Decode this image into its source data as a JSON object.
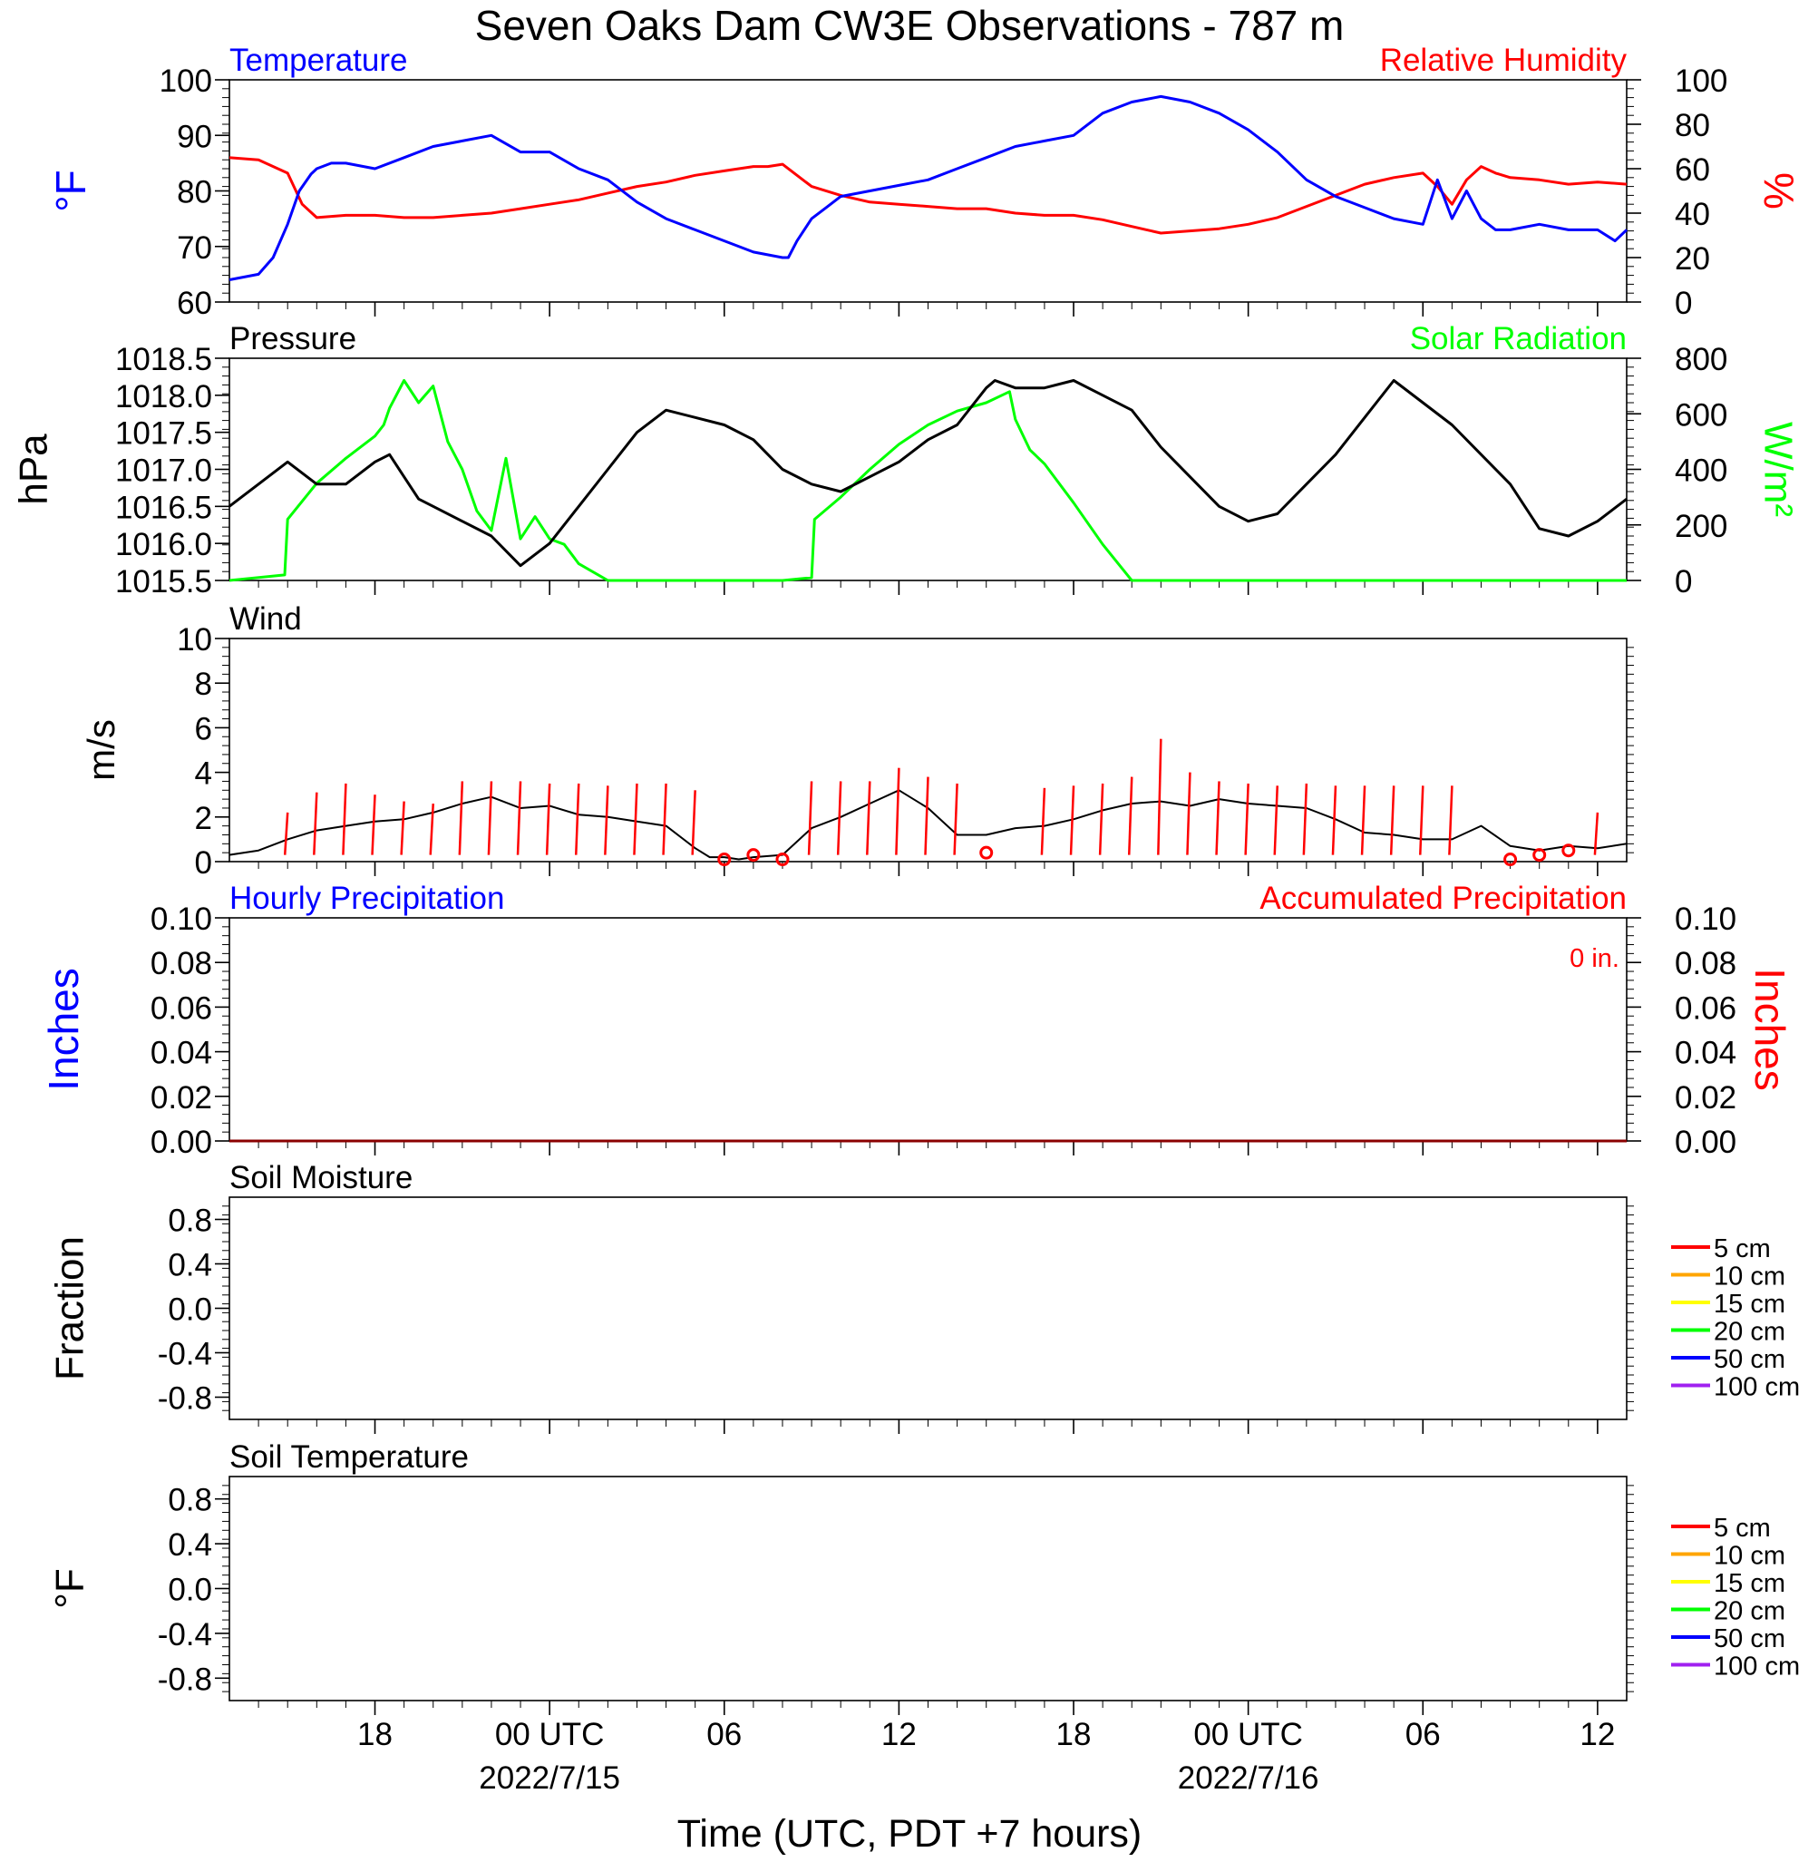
{
  "title": "Seven Oaks Dam CW3E Observations - 787 m",
  "x_axis": {
    "label": "Time (UTC, PDT +7 hours)",
    "range_hours": [
      -5,
      43
    ],
    "ticks": [
      {
        "h": 0,
        "label": "18",
        "date": ""
      },
      {
        "h": 6,
        "label": "00 UTC",
        "date": "2022/7/15"
      },
      {
        "h": 12,
        "label": "06",
        "date": ""
      },
      {
        "h": 18,
        "label": "12",
        "date": ""
      },
      {
        "h": 24,
        "label": "18",
        "date": ""
      },
      {
        "h": 30,
        "label": "00 UTC",
        "date": "2022/7/16"
      },
      {
        "h": 36,
        "label": "06",
        "date": ""
      },
      {
        "h": 42,
        "label": "12",
        "date": ""
      }
    ]
  },
  "panels": {
    "temp_rh": {
      "left_title": "Temperature",
      "right_title": "Relative Humidity",
      "left_unit": "°F",
      "right_unit": "%",
      "left_ticks": [
        "100",
        "90",
        "80",
        "70",
        "60"
      ],
      "right_ticks": [
        "100",
        "80",
        "60",
        "40",
        "20",
        "0"
      ]
    },
    "pressure_solar": {
      "left_title": "Pressure",
      "right_title": "Solar Radiation",
      "left_unit": "hPa",
      "right_unit": "W/m²",
      "left_ticks": [
        "1018.5",
        "1018.0",
        "1017.5",
        "1017.0",
        "1016.5",
        "1016.0",
        "1015.5"
      ],
      "right_ticks": [
        "800",
        "600",
        "400",
        "200",
        "0"
      ]
    },
    "wind": {
      "left_title": "Wind",
      "left_unit": "m/s",
      "left_ticks": [
        "10",
        "8",
        "6",
        "4",
        "2",
        "0"
      ]
    },
    "precip": {
      "left_title": "Hourly Precipitation",
      "right_title": "Accumulated Precipitation",
      "left_unit": "Inches",
      "right_unit": "Inches",
      "accum_label": "0 in.",
      "left_ticks": [
        "0.10",
        "0.08",
        "0.06",
        "0.04",
        "0.02",
        "0.00"
      ],
      "right_ticks": [
        "0.10",
        "0.08",
        "0.06",
        "0.04",
        "0.02",
        "0.00"
      ]
    },
    "soil_moisture": {
      "left_title": "Soil Moisture",
      "left_unit": "Fraction",
      "left_ticks": [
        "0.8",
        "0.4",
        "0.0",
        "-0.4",
        "-0.8"
      ]
    },
    "soil_temp": {
      "left_title": "Soil Temperature",
      "left_unit": "°F",
      "left_ticks": [
        "0.8",
        "0.4",
        "0.0",
        "-0.4",
        "-0.8"
      ]
    }
  },
  "soil_legend": [
    {
      "label": "5 cm",
      "color": "#ff0000"
    },
    {
      "label": "10 cm",
      "color": "#ffa500"
    },
    {
      "label": "15 cm",
      "color": "#ffff00"
    },
    {
      "label": "20 cm",
      "color": "#00ff00"
    },
    {
      "label": "50 cm",
      "color": "#0000ff"
    },
    {
      "label": "100 cm",
      "color": "#a020f0"
    }
  ],
  "colors": {
    "temperature": "#0000ff",
    "humidity": "#ff0000",
    "pressure": "#000000",
    "solar": "#00ff00",
    "wind": "#000000",
    "barb": "#ff0000"
  },
  "chart_data": [
    {
      "type": "line",
      "name": "Temperature",
      "x_units": "hours since 2022-07-14 18:00 UTC",
      "ylim": [
        60,
        100
      ],
      "x": [
        -5,
        -4,
        -3.5,
        -3,
        -2.6,
        -2.2,
        -2,
        -1.5,
        -1,
        0,
        1,
        2,
        3,
        4,
        5,
        6,
        7,
        8,
        9,
        10,
        11,
        12,
        13,
        14,
        14.2,
        14.5,
        15,
        15.5,
        16,
        17,
        18,
        19,
        20,
        21,
        22,
        23,
        24,
        25,
        26,
        27,
        28,
        29,
        30,
        31,
        32,
        33,
        34,
        35,
        36,
        36.5,
        37,
        37.5,
        38,
        38.5,
        39,
        40,
        41,
        42,
        42.6,
        43
      ],
      "y": [
        64,
        65,
        68,
        74,
        80,
        83,
        84,
        85,
        85,
        84,
        86,
        88,
        89,
        90,
        87,
        87,
        84,
        82,
        78,
        75,
        73,
        71,
        69,
        68,
        68,
        71,
        75,
        77,
        79,
        80,
        81,
        82,
        84,
        86,
        88,
        89,
        90,
        94,
        96,
        97,
        96,
        94,
        91,
        87,
        82,
        79,
        77,
        75,
        74,
        82,
        75,
        80,
        75,
        73,
        73,
        74,
        73,
        73,
        71,
        73
      ]
    },
    {
      "type": "line",
      "name": "Relative Humidity",
      "ylim": [
        0,
        100
      ],
      "x": [
        -5,
        -4,
        -3,
        -2.5,
        -2,
        -1,
        0,
        1,
        2,
        3,
        4,
        5,
        6,
        7,
        8,
        9,
        10,
        11,
        12,
        13,
        13.5,
        14,
        15,
        16,
        17,
        18,
        19,
        20,
        21,
        22,
        23,
        24,
        25,
        26,
        27,
        28,
        29,
        30,
        31,
        32,
        33,
        34,
        35,
        36,
        36.5,
        37,
        37.5,
        38,
        38.5,
        39,
        40,
        41,
        42,
        43
      ],
      "y": [
        65,
        64,
        58,
        44,
        38,
        39,
        39,
        38,
        38,
        39,
        40,
        42,
        44,
        46,
        49,
        52,
        54,
        57,
        59,
        61,
        61,
        62,
        52,
        48,
        45,
        44,
        43,
        42,
        42,
        40,
        39,
        39,
        37,
        34,
        31,
        32,
        33,
        35,
        38,
        43,
        48,
        53,
        56,
        58,
        52,
        44,
        55,
        61,
        58,
        56,
        55,
        53,
        54,
        53
      ]
    },
    {
      "type": "line",
      "name": "Pressure",
      "ylim": [
        1015.5,
        1018.5
      ],
      "x": [
        -5,
        -4,
        -3,
        -2,
        -1,
        0,
        0.5,
        1,
        1.5,
        2,
        3,
        4,
        5,
        6,
        7,
        8,
        9,
        10,
        11,
        12,
        13,
        14,
        15,
        16,
        17,
        18,
        19,
        20,
        21,
        21.3,
        22,
        23,
        24,
        25,
        26,
        27,
        28,
        29,
        30,
        31,
        32,
        33,
        34,
        35,
        36,
        37,
        38,
        39,
        40,
        41,
        42,
        43
      ],
      "y": [
        1016.5,
        1016.8,
        1017.1,
        1016.8,
        1016.8,
        1017.1,
        1017.2,
        1016.9,
        1016.6,
        1016.5,
        1016.3,
        1016.1,
        1015.7,
        1016.0,
        1016.5,
        1017.0,
        1017.5,
        1017.8,
        1017.7,
        1017.6,
        1017.4,
        1017.0,
        1016.8,
        1016.7,
        1016.9,
        1017.1,
        1017.4,
        1017.6,
        1018.1,
        1018.2,
        1018.1,
        1018.1,
        1018.2,
        1018.0,
        1017.8,
        1017.3,
        1016.9,
        1016.5,
        1016.3,
        1016.4,
        1016.8,
        1017.2,
        1017.7,
        1018.2,
        1017.9,
        1017.6,
        1017.2,
        1016.8,
        1016.2,
        1016.1,
        1016.3,
        1016.6
      ]
    },
    {
      "type": "line",
      "name": "Solar Radiation",
      "ylim": [
        0,
        800
      ],
      "x": [
        -5,
        -3.1,
        -3,
        -2,
        -1,
        0,
        0.3,
        0.5,
        1,
        1.5,
        2,
        2.5,
        3,
        3.5,
        4,
        4.5,
        5,
        5.5,
        6,
        6.5,
        7,
        8,
        9,
        10,
        11,
        12,
        13,
        14,
        15,
        15.1,
        16,
        17,
        18,
        19,
        20,
        21,
        21.8,
        22,
        22.5,
        23,
        24,
        25,
        26,
        27,
        28,
        29,
        30,
        31,
        32,
        33,
        34,
        35,
        36,
        37,
        38,
        39,
        40,
        41,
        42,
        43
      ],
      "y": [
        0,
        20,
        220,
        350,
        440,
        520,
        560,
        620,
        720,
        640,
        700,
        500,
        400,
        250,
        180,
        440,
        150,
        230,
        150,
        130,
        60,
        0,
        0,
        0,
        0,
        0,
        0,
        0,
        10,
        220,
        300,
        400,
        490,
        560,
        610,
        640,
        680,
        580,
        470,
        420,
        280,
        130,
        0,
        0,
        0,
        0,
        0,
        0,
        0,
        0,
        0,
        0,
        0,
        0,
        0,
        0,
        0,
        0,
        0,
        0
      ]
    },
    {
      "type": "line",
      "name": "Wind",
      "ylim": [
        0,
        10
      ],
      "x": [
        -5,
        -4,
        -3,
        -2,
        -1,
        0,
        1,
        2,
        3,
        4,
        5,
        6,
        7,
        8,
        9,
        10,
        11,
        11.5,
        12,
        12.5,
        13,
        14,
        15,
        16,
        17,
        18,
        19,
        20,
        21,
        22,
        23,
        24,
        25,
        26,
        27,
        28,
        29,
        30,
        31,
        32,
        33,
        34,
        35,
        36,
        37,
        38,
        39,
        40,
        41,
        42,
        43
      ],
      "y": [
        0.3,
        0.5,
        1.0,
        1.4,
        1.6,
        1.8,
        1.9,
        2.2,
        2.6,
        2.9,
        2.4,
        2.5,
        2.1,
        2.0,
        1.8,
        1.6,
        0.6,
        0.2,
        0.2,
        0.1,
        0.2,
        0.3,
        1.5,
        2.0,
        2.6,
        3.2,
        2.4,
        1.2,
        1.2,
        1.5,
        1.6,
        1.9,
        2.3,
        2.6,
        2.7,
        2.5,
        2.8,
        2.6,
        2.5,
        2.4,
        1.9,
        1.3,
        1.2,
        1.0,
        1.0,
        1.6,
        0.7,
        0.5,
        0.7,
        0.6,
        0.8
      ]
    },
    {
      "type": "scatter",
      "name": "Wind direction barbs",
      "ylim": [
        0,
        10
      ],
      "x": [
        -3,
        -2,
        -1,
        0,
        1,
        2,
        3,
        4,
        5,
        6,
        7,
        8,
        9,
        10,
        11,
        15,
        16,
        17,
        18,
        19,
        20,
        23,
        24,
        25,
        26,
        27,
        28,
        29,
        30,
        31,
        32,
        33,
        34,
        35,
        36,
        37,
        42
      ],
      "y": [
        2.2,
        3.1,
        3.5,
        3.0,
        2.7,
        2.6,
        3.6,
        3.6,
        3.6,
        3.5,
        3.5,
        3.4,
        3.5,
        3.5,
        3.2,
        3.6,
        3.6,
        3.6,
        4.2,
        3.8,
        3.5,
        3.3,
        3.4,
        3.5,
        3.8,
        5.5,
        4.0,
        3.6,
        3.5,
        3.4,
        3.5,
        3.4,
        3.4,
        3.4,
        3.4,
        3.4,
        2.2
      ]
    },
    {
      "type": "scatter",
      "name": "Calm wind",
      "ylim": [
        0,
        10
      ],
      "x": [
        12,
        13,
        14,
        21,
        39,
        40,
        41
      ],
      "y": [
        0.1,
        0.3,
        0.1,
        0.4,
        0.1,
        0.3,
        0.5
      ]
    },
    {
      "type": "line",
      "name": "Hourly Precipitation",
      "ylim": [
        0,
        0.1
      ],
      "x": [
        -5,
        43
      ],
      "y": [
        0,
        0
      ]
    },
    {
      "type": "line",
      "name": "Accumulated Precipitation",
      "ylim": [
        0,
        0.1
      ],
      "x": [
        -5,
        43
      ],
      "y": [
        0,
        0
      ]
    }
  ]
}
